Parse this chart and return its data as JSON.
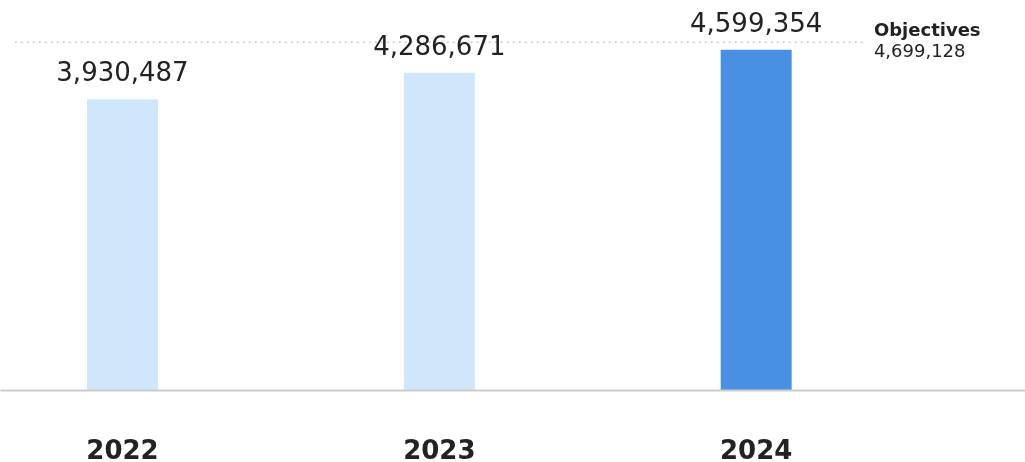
{
  "chart_data": {
    "type": "bar",
    "categories": [
      "2022",
      "2023",
      "2024"
    ],
    "values": [
      3930487,
      4286671,
      4599354
    ],
    "value_labels": [
      "3,930,487",
      "4,286,671",
      "4,599,354"
    ],
    "colors": [
      "#d0e7fb",
      "#d0e7fb",
      "#4a90e2"
    ],
    "tick_labels": "x",
    "grid": false,
    "ref_lines": [
      {
        "axis": "y",
        "value": 4699128,
        "label": "Objectives",
        "color": "#cccccc",
        "line_style": "dotted"
      }
    ],
    "annotations": [
      "4,699,128"
    ]
  }
}
